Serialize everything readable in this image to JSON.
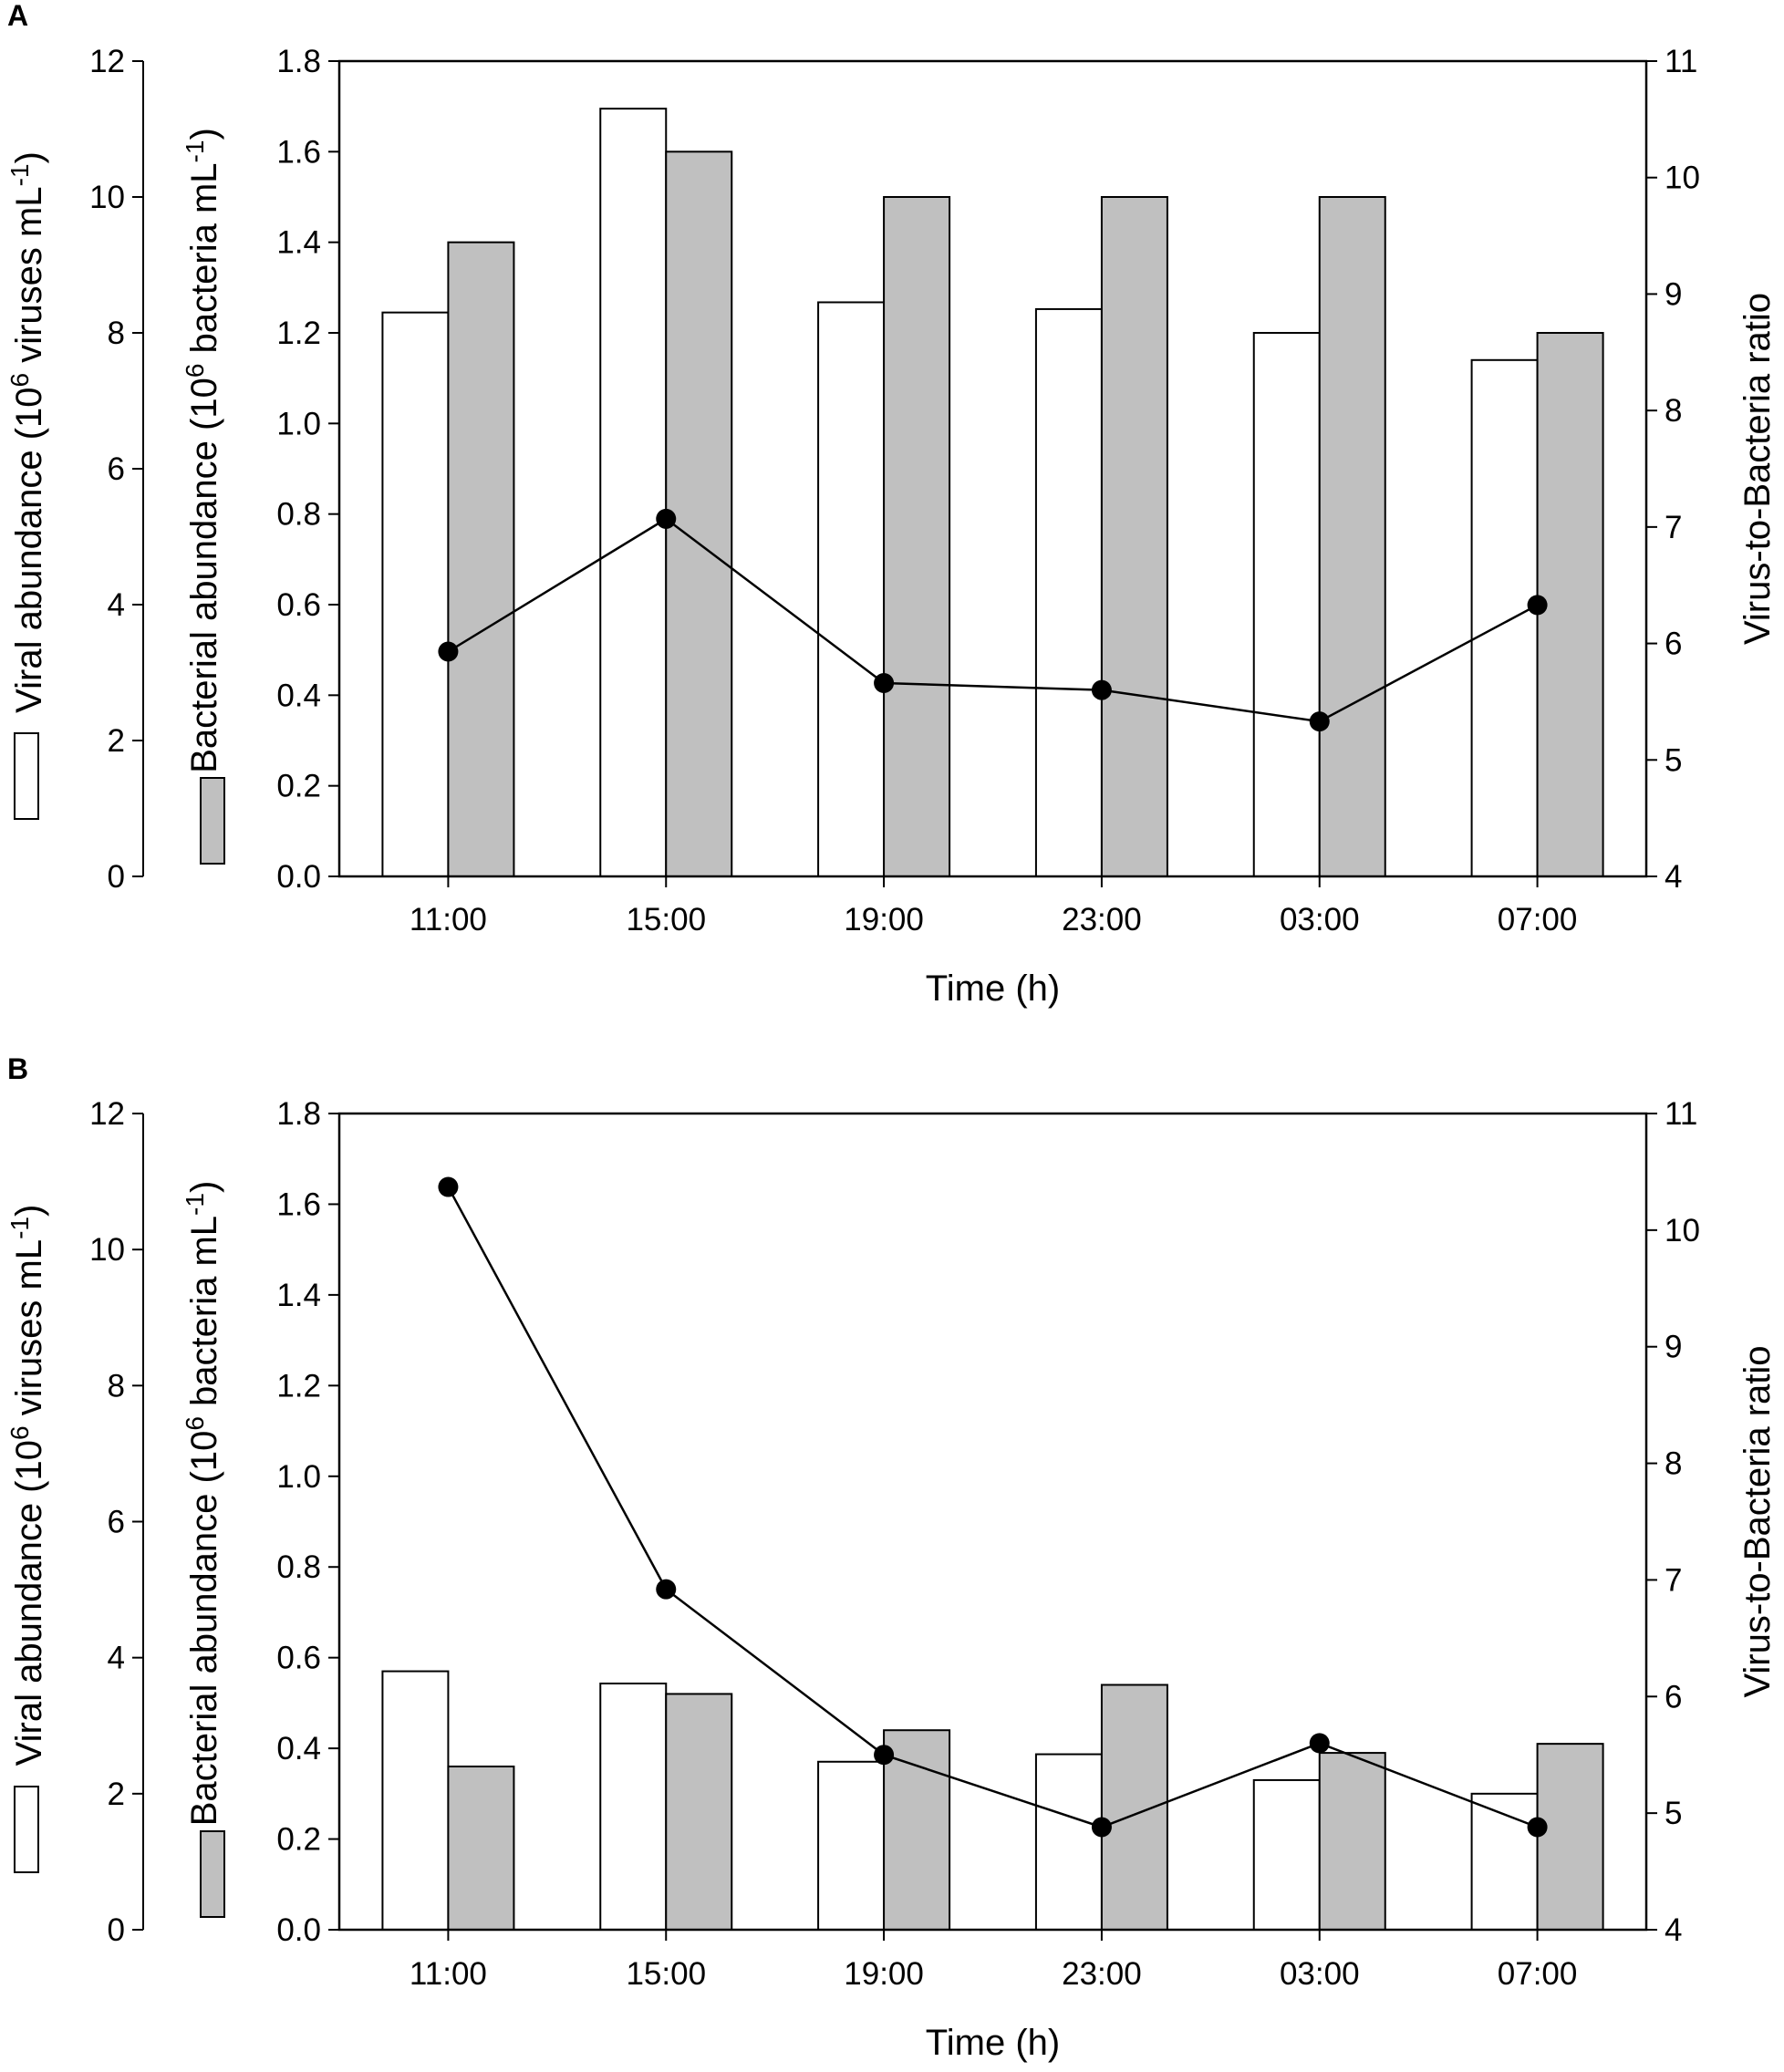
{
  "figure": {
    "panels": [
      "A",
      "B"
    ]
  },
  "chart_data": [
    {
      "panel": "A",
      "type": "bar",
      "categories": [
        "11:00",
        "15:00",
        "19:00",
        "23:00",
        "03:00",
        "07:00"
      ],
      "xlabel": "Time (h)",
      "axes": {
        "viral": {
          "label_main": "Viral abundance (10",
          "label_exp1": "6",
          "label_mid": " viruses mL",
          "label_exp2": "-1",
          "label_end": ")",
          "ylim": [
            0,
            12
          ],
          "ticks": [
            "0",
            "2",
            "4",
            "6",
            "8",
            "10",
            "12"
          ]
        },
        "bacterial": {
          "label_main": "Bacterial abundance (10",
          "label_exp1": "6",
          "label_mid": " bacteria mL",
          "label_exp2": "-1",
          "label_end": ")",
          "ylim": [
            0,
            1.8
          ],
          "ticks": [
            "0.0",
            "0.2",
            "0.4",
            "0.6",
            "0.8",
            "1.0",
            "1.2",
            "1.4",
            "1.6",
            "1.8"
          ]
        },
        "ratio": {
          "label": "Virus-to-Bacteria ratio",
          "ylim": [
            4,
            11
          ],
          "ticks": [
            "4",
            "5",
            "6",
            "7",
            "8",
            "9",
            "10",
            "11"
          ]
        }
      },
      "series": [
        {
          "name": "Viral abundance",
          "axis": "viral",
          "kind": "bar",
          "color": "#ffffff",
          "values": [
            8.3,
            11.3,
            8.45,
            8.35,
            8.0,
            7.6
          ]
        },
        {
          "name": "Bacterial abundance",
          "axis": "bacterial",
          "kind": "bar",
          "color": "#c0c0c0",
          "values": [
            1.4,
            1.6,
            1.5,
            1.5,
            1.5,
            1.2
          ]
        },
        {
          "name": "Virus-to-Bacteria ratio",
          "axis": "ratio",
          "kind": "line",
          "color": "#000000",
          "values": [
            5.93,
            7.07,
            5.66,
            5.6,
            5.33,
            6.33
          ]
        }
      ]
    },
    {
      "panel": "B",
      "type": "bar",
      "categories": [
        "11:00",
        "15:00",
        "19:00",
        "23:00",
        "03:00",
        "07:00"
      ],
      "xlabel": "Time (h)",
      "axes": {
        "viral": {
          "label_main": "Viral abundance (10",
          "label_exp1": "6",
          "label_mid": " viruses mL",
          "label_exp2": "-1",
          "label_end": ")",
          "ylim": [
            0,
            12
          ],
          "ticks": [
            "0",
            "2",
            "4",
            "6",
            "8",
            "10",
            "12"
          ]
        },
        "bacterial": {
          "label_main": "Bacterial abundance (10",
          "label_exp1": "6",
          "label_mid": " bacteria mL",
          "label_exp2": "-1",
          "label_end": ")",
          "ylim": [
            0,
            1.8
          ],
          "ticks": [
            "0.0",
            "0.2",
            "0.4",
            "0.6",
            "0.8",
            "1.0",
            "1.2",
            "1.4",
            "1.6",
            "1.8"
          ]
        },
        "ratio": {
          "label": "Virus-to-Bacteria ratio",
          "ylim": [
            4,
            11
          ],
          "ticks": [
            "4",
            "5",
            "6",
            "7",
            "8",
            "9",
            "10",
            "11"
          ]
        }
      },
      "series": [
        {
          "name": "Viral abundance",
          "axis": "viral",
          "kind": "bar",
          "color": "#ffffff",
          "values": [
            3.8,
            3.62,
            2.47,
            2.58,
            2.2,
            2.0
          ]
        },
        {
          "name": "Bacterial abundance",
          "axis": "bacterial",
          "kind": "bar",
          "color": "#c0c0c0",
          "values": [
            0.36,
            0.52,
            0.44,
            0.54,
            0.39,
            0.41
          ]
        },
        {
          "name": "Virus-to-Bacteria ratio",
          "axis": "ratio",
          "kind": "line",
          "color": "#000000",
          "values": [
            10.37,
            6.92,
            5.5,
            4.88,
            5.6,
            4.88
          ]
        }
      ]
    }
  ]
}
